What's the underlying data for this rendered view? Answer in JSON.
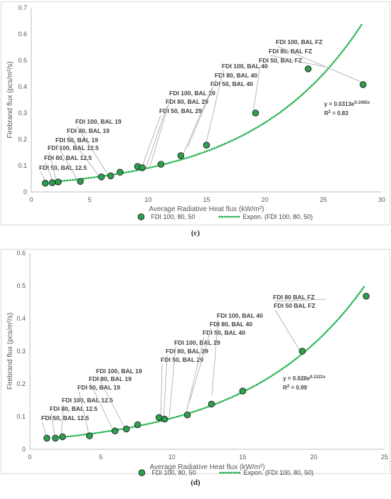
{
  "chart_data": [
    {
      "type": "scatter",
      "panel_label": "(c)",
      "xlabel": "Average Radiative Heat flux (kW/m²)",
      "ylabel": "Firebrand flux (pcs/m²/s)",
      "xlim": [
        0,
        30
      ],
      "ylim": [
        0,
        0.7
      ],
      "xticks": [
        "0",
        "5",
        "10",
        "15",
        "20",
        "25",
        "30"
      ],
      "yticks": [
        "0",
        "0.1",
        "0.2",
        "0.3",
        "0.4",
        "0.5",
        "0.6",
        "0.7"
      ],
      "grid": false,
      "legend_position": "bottom",
      "series": [
        {
          "name": "FDI 100, 80, 50",
          "marker_color": "#2e9e4f",
          "points": [
            {
              "x": 1.2,
              "y": 0.033
            },
            {
              "x": 1.8,
              "y": 0.035
            },
            {
              "x": 2.3,
              "y": 0.038
            },
            {
              "x": 4.2,
              "y": 0.04
            },
            {
              "x": 6.0,
              "y": 0.057
            },
            {
              "x": 6.8,
              "y": 0.061
            },
            {
              "x": 7.6,
              "y": 0.075
            },
            {
              "x": 9.1,
              "y": 0.097
            },
            {
              "x": 9.5,
              "y": 0.092
            },
            {
              "x": 11.1,
              "y": 0.105
            },
            {
              "x": 12.8,
              "y": 0.138
            },
            {
              "x": 15.0,
              "y": 0.178
            },
            {
              "x": 19.2,
              "y": 0.3
            },
            {
              "x": 23.7,
              "y": 0.468
            },
            {
              "x": 28.4,
              "y": 0.408
            }
          ]
        },
        {
          "name": "Expon. (FDI 100, 80, 50)",
          "line_color": "#22b14c",
          "fit": {
            "a": 0.0313,
            "b": 0.1065,
            "x_from": 1.9,
            "x_to": 28.3
          }
        }
      ],
      "equation": {
        "base": "y = 0.0313e",
        "exp": "0.1065x",
        "r2_label": "R",
        "r2_sup": "2",
        "r2_value": " = 0.83"
      },
      "annotations": [
        {
          "lines": [
            "FDI 50, BAL 12.5"
          ],
          "point": 0
        },
        {
          "lines": [
            "FDI 80, BAL 12.5"
          ],
          "point": 1
        },
        {
          "lines": [
            "FDI 100, BAL 12.5"
          ],
          "point": 2
        },
        {
          "lines": [
            "FDI 50, BAL 19"
          ],
          "point": 3
        },
        {
          "lines": [
            "FDI 80, BAL 19"
          ],
          "point": 4
        },
        {
          "lines": [
            "FDI 100, BAL 19"
          ],
          "point": 5
        },
        {
          "lines": [
            "FDI 50, BAL 29"
          ],
          "point": 7
        },
        {
          "lines": [
            "FDI 80, BAL 29"
          ],
          "point": 8
        },
        {
          "lines": [
            "FDI 100, BAL 29"
          ],
          "point": 9
        },
        {
          "lines": [
            "FDI 50, BAL 40"
          ],
          "point": 10
        },
        {
          "lines": [
            "FDI 80, BAL 40"
          ],
          "point": 11
        },
        {
          "lines": [
            "FDI 100, BAL 40"
          ],
          "point": 12
        },
        {
          "lines": [
            "FDI 50, BAL FZ"
          ],
          "point": 12
        },
        {
          "lines": [
            "FDI 80, BAL FZ"
          ],
          "point": 13
        },
        {
          "lines": [
            "FDI 100, BAL FZ"
          ],
          "point": 14
        }
      ]
    },
    {
      "type": "scatter",
      "panel_label": "(d)",
      "xlabel": "Average Radiative Heat flux (kW/m²)",
      "ylabel": "Firebrand flux (pcs/m²/s)",
      "xlim": [
        0,
        25
      ],
      "ylim": [
        0,
        0.6
      ],
      "xticks": [
        "0",
        "5",
        "10",
        "15",
        "20",
        "25"
      ],
      "yticks": [
        "0",
        "0.1",
        "0.2",
        "0.3",
        "0.4",
        "0.5",
        "0.6"
      ],
      "grid": false,
      "legend_position": "bottom",
      "series": [
        {
          "name": "FDI 100, 80, 50",
          "marker_color": "#2e9e4f",
          "points": [
            {
              "x": 1.2,
              "y": 0.034
            },
            {
              "x": 1.8,
              "y": 0.034
            },
            {
              "x": 2.3,
              "y": 0.038
            },
            {
              "x": 4.2,
              "y": 0.041
            },
            {
              "x": 6.0,
              "y": 0.056
            },
            {
              "x": 6.8,
              "y": 0.062
            },
            {
              "x": 7.6,
              "y": 0.075
            },
            {
              "x": 9.1,
              "y": 0.097
            },
            {
              "x": 9.5,
              "y": 0.092
            },
            {
              "x": 11.1,
              "y": 0.105
            },
            {
              "x": 12.8,
              "y": 0.138
            },
            {
              "x": 15.0,
              "y": 0.178
            },
            {
              "x": 19.2,
              "y": 0.3
            },
            {
              "x": 23.7,
              "y": 0.468
            }
          ]
        },
        {
          "name": "Expon. (FDI 100, 80, 50)",
          "line_color": "#22b14c",
          "fit": {
            "a": 0.028,
            "b": 0.1221,
            "x_from": 1.9,
            "x_to": 23.6
          }
        }
      ],
      "equation": {
        "base": "y = 0.028e",
        "exp": "0.1221x",
        "r2_label": "R",
        "r2_sup": "2",
        "r2_value": " = 0.99"
      },
      "annotations": [
        {
          "lines": [
            "FDI 50, BAL 12.5"
          ],
          "point": 0
        },
        {
          "lines": [
            "FDI 80, BAL 12.5"
          ],
          "point": 1
        },
        {
          "lines": [
            "FDI 100, BAL 12.5"
          ],
          "point": 2
        },
        {
          "lines": [
            "FDI 50, BAL 19"
          ],
          "point": 3
        },
        {
          "lines": [
            "FDI 80, BAL 19"
          ],
          "point": 4
        },
        {
          "lines": [
            "FDI 100, BAL 19"
          ],
          "point": 5
        },
        {
          "lines": [
            "FDI 50, BAL 29"
          ],
          "point": 7
        },
        {
          "lines": [
            "FDI 80, BAL 29"
          ],
          "point": 8
        },
        {
          "lines": [
            "FDI 100, BAL 29"
          ],
          "point": 9
        },
        {
          "lines": [
            "FDI 50, BAL 40"
          ],
          "point": 10
        },
        {
          "lines": [
            "FDI 80, BAL 40"
          ],
          "point": 11
        },
        {
          "lines": [
            "FDI 100, BAL 40"
          ],
          "point": 11
        },
        {
          "lines": [
            "FDI 50 BAL FZ"
          ],
          "point": 12
        },
        {
          "lines": [
            "FDI 80 BAL FZ"
          ],
          "point": 13
        }
      ]
    }
  ]
}
